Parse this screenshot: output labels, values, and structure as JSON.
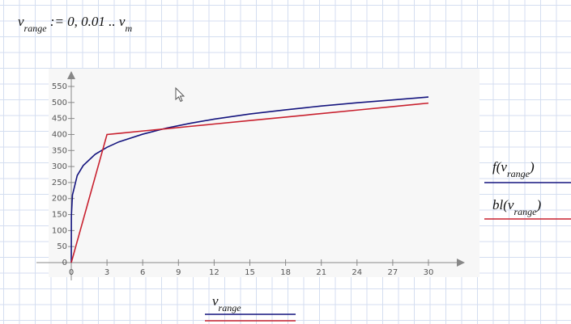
{
  "definition": "v_range := 0, 0.01 .. v_m",
  "chart_data": {
    "type": "line",
    "x_label": "v_range",
    "x": [
      0,
      0.01,
      0.1,
      0.5,
      1,
      2,
      3,
      4,
      6,
      8,
      10,
      12,
      15,
      18,
      21,
      24,
      27,
      30
    ],
    "series": [
      {
        "name": "f(v_range)",
        "color": "#14147e",
        "values": [
          0,
          147,
          211,
          272,
          303,
          338,
          360,
          377,
          401,
          420,
          435,
          448,
          464,
          477,
          489,
          499,
          508,
          517
        ]
      },
      {
        "name": "bl(v_range)",
        "color": "#c8202e",
        "values": [
          0,
          1.3,
          13.3,
          66.7,
          133.3,
          266.7,
          400,
          403.6,
          410.9,
          418.1,
          425.4,
          432.7,
          443.6,
          454.4,
          465.3,
          476.2,
          487.1,
          498
        ]
      }
    ],
    "xlim": [
      0,
      30
    ],
    "xticks": [
      0,
      3,
      6,
      9,
      12,
      15,
      18,
      21,
      24,
      27,
      30
    ],
    "ylim": [
      0,
      550
    ],
    "yticks": [
      0,
      50,
      100,
      150,
      200,
      250,
      300,
      350,
      400,
      450,
      500,
      550
    ]
  }
}
